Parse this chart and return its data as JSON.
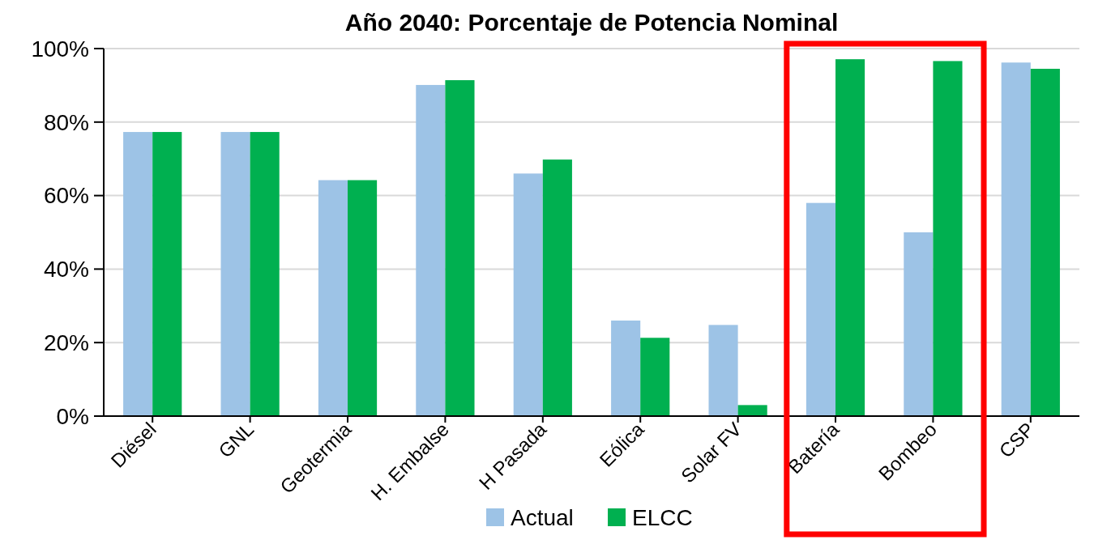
{
  "chart_data": {
    "type": "bar",
    "title": "Año 2040: Porcentaje de Potencia Nominal",
    "categories": [
      "Diésel",
      "GNL",
      "Geotermia",
      "H. Embalse",
      "H Pasada",
      "Eólica",
      "Solar FV",
      "Batería",
      "Bombeo",
      "CSP"
    ],
    "series": [
      {
        "name": "Actual",
        "color": "#9dc3e6",
        "values": [
          77.3,
          77.3,
          64.2,
          90.1,
          66,
          26,
          24.8,
          58,
          50,
          96.2
        ]
      },
      {
        "name": "ELCC",
        "color": "#00b050",
        "values": [
          77.3,
          77.3,
          64.2,
          91.4,
          69.8,
          21.3,
          3,
          97.1,
          96.6,
          94.5
        ]
      }
    ],
    "ylim": [
      0,
      100
    ],
    "yticks": [
      {
        "value": 0,
        "label": "0%"
      },
      {
        "value": 20,
        "label": "20%"
      },
      {
        "value": 40,
        "label": "40%"
      },
      {
        "value": 60,
        "label": "60%"
      },
      {
        "value": 80,
        "label": "80%"
      },
      {
        "value": 100,
        "label": "100%"
      }
    ],
    "grid": "y",
    "legend": "bottom"
  }
}
